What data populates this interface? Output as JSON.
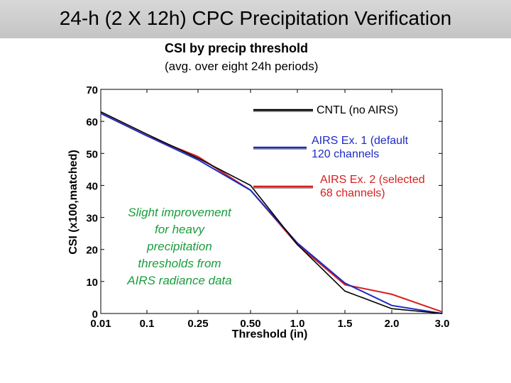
{
  "slide": {
    "title": "24-h (2 X 12h) CPC Precipitation Verification"
  },
  "annotation": {
    "lines": [
      "Slight improvement",
      "for heavy",
      "precipitation",
      "thresholds from",
      "AIRS radiance data"
    ],
    "color": "#1a9c3c"
  },
  "chart_data": {
    "type": "line",
    "title": "CSI by precip threshold",
    "subtitle": "(avg. over eight 24h periods)",
    "xlabel": "Threshold (in)",
    "ylabel": "CSI (x100,matched)",
    "categories": [
      "0.01",
      "0.1",
      "0.25",
      "0.50",
      "1.0",
      "1.5",
      "2.0",
      "3.0"
    ],
    "yticks": [
      0,
      10,
      20,
      30,
      40,
      50,
      60,
      70
    ],
    "ylim": [
      0,
      70
    ],
    "grid": false,
    "legend_position": "top-right",
    "series": [
      {
        "name": "CNTL (no AIRS)",
        "legend_lines": [
          "CNTL (no AIRS)"
        ],
        "color": "#000000",
        "text_color": "#000000",
        "values": [
          63,
          56,
          48.5,
          40,
          21.5,
          7,
          1.5,
          0
        ]
      },
      {
        "name": "AIRS Ex. 1 (default 120 channels",
        "legend_lines": [
          "AIRS Ex. 1 (default",
          "120 channels"
        ],
        "color": "#1c2bc4",
        "text_color": "#1c2bc4",
        "values": [
          62.5,
          55.5,
          48,
          38.5,
          22,
          9.5,
          2.5,
          0
        ]
      },
      {
        "name": "AIRS Ex. 2 (selected 68 channels)",
        "legend_lines": [
          "AIRS Ex. 2 (selected",
          "68 channels)"
        ],
        "color": "#d81e1e",
        "text_color": "#d81e1e",
        "values": [
          62.5,
          55.5,
          49,
          38.5,
          21.5,
          9,
          6,
          0.5
        ]
      }
    ]
  }
}
